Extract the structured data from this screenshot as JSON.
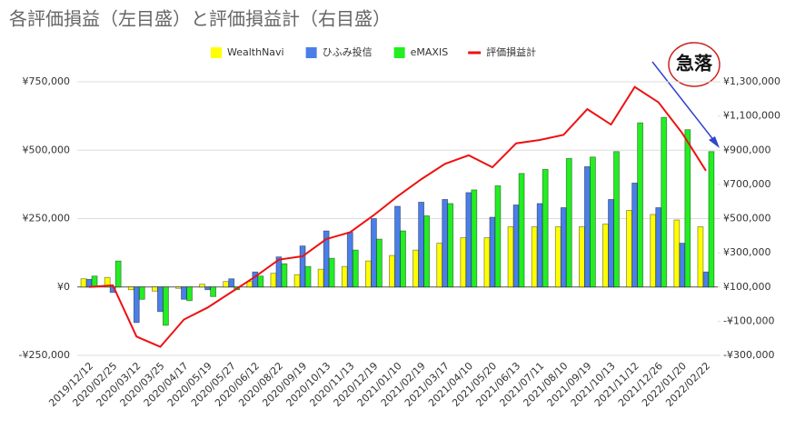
{
  "chart_data": {
    "type": "bar",
    "title": "各評価損益（左目盛）と評価損益計（右目盛）",
    "annotation": "急落",
    "categories": [
      "2019/12/12",
      "2020/02/25",
      "2020/03/12",
      "2020/03/25",
      "2020/04/17",
      "2020/05/19",
      "2020/05/27",
      "2020/06/12",
      "2020/08/22",
      "2020/09/19",
      "2020/10/13",
      "2020/11/13",
      "2020/12/19",
      "2021/01/10",
      "2021/02/19",
      "2021/03/17",
      "2021/04/10",
      "2021/05/20",
      "2021/06/13",
      "2021/07/11",
      "2021/08/10",
      "2021/09/19",
      "2021/10/13",
      "2021/11/12",
      "2021/12/26",
      "2022/01/20",
      "2022/02/22"
    ],
    "series": [
      {
        "name": "WealthNavi",
        "color": "#ffff00",
        "values": [
          30000,
          35000,
          -10000,
          -15000,
          -5000,
          10000,
          20000,
          20000,
          50000,
          45000,
          65000,
          75000,
          95000,
          115000,
          135000,
          160000,
          180000,
          180000,
          220000,
          220000,
          220000,
          220000,
          230000,
          280000,
          265000,
          245000,
          220000
        ]
      },
      {
        "name": "ひふみ投信",
        "color": "#4a7ee8",
        "values": [
          28000,
          -20000,
          -130000,
          -90000,
          -45000,
          -10000,
          30000,
          55000,
          110000,
          150000,
          205000,
          200000,
          250000,
          295000,
          310000,
          320000,
          345000,
          255000,
          300000,
          305000,
          290000,
          440000,
          320000,
          380000,
          290000,
          160000,
          55000
        ]
      },
      {
        "name": "eMAXIS",
        "color": "#22ee22",
        "values": [
          40000,
          95000,
          -45000,
          -140000,
          -50000,
          -35000,
          -10000,
          40000,
          85000,
          75000,
          105000,
          135000,
          175000,
          205000,
          260000,
          305000,
          355000,
          370000,
          415000,
          430000,
          470000,
          475000,
          495000,
          600000,
          620000,
          575000,
          495000
        ]
      },
      {
        "name": "評価損益計",
        "color": "#ee1111",
        "type": "line",
        "axis": "y2",
        "values": [
          100000,
          110000,
          -190000,
          -250000,
          -90000,
          -20000,
          70000,
          160000,
          260000,
          280000,
          380000,
          420000,
          520000,
          630000,
          730000,
          820000,
          870000,
          800000,
          940000,
          960000,
          990000,
          1140000,
          1050000,
          1270000,
          1180000,
          1000000,
          780000
        ]
      }
    ],
    "ylim": [
      -250000,
      750000
    ],
    "yticks": [
      {
        "value": -250000,
        "label": "-¥250,000"
      },
      {
        "value": 0,
        "label": "¥0"
      },
      {
        "value": 250000,
        "label": "¥250,000"
      },
      {
        "value": 500000,
        "label": "¥500,000"
      },
      {
        "value": 750000,
        "label": "¥750,000"
      }
    ],
    "y2lim": [
      -300000,
      1300000
    ],
    "y2ticks": [
      {
        "value": -300000,
        "label": "-¥300,000"
      },
      {
        "value": -100000,
        "label": "-¥100,000"
      },
      {
        "value": 100000,
        "label": "¥100,000"
      },
      {
        "value": 300000,
        "label": "¥300,000"
      },
      {
        "value": 500000,
        "label": "¥500,000"
      },
      {
        "value": 700000,
        "label": "¥700,000"
      },
      {
        "value": 900000,
        "label": "¥900,000"
      },
      {
        "value": 1100000,
        "label": "¥1,100,000"
      },
      {
        "value": 1300000,
        "label": "¥1,300,000"
      }
    ],
    "grid": true,
    "legend": "top"
  }
}
